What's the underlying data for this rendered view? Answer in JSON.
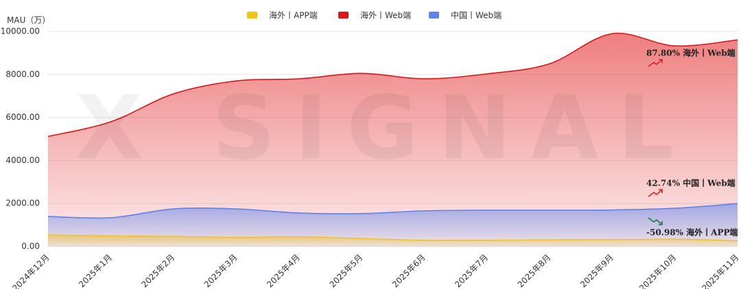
{
  "chart_data": {
    "type": "area",
    "y_label": "MAU（万）",
    "watermark": "X SIGNAL",
    "categories": [
      "2024年12月",
      "2025年1月",
      "2025年2月",
      "2025年3月",
      "2025年4月",
      "2025年5月",
      "2025年6月",
      "2025年7月",
      "2025年8月",
      "2025年9月",
      "2025年10月",
      "2025年11月"
    ],
    "series": [
      {
        "name": "海外丨APP端",
        "color": "#f2c318",
        "values": [
          540,
          490,
          470,
          420,
          450,
          370,
          290,
          290,
          310,
          320,
          340,
          265
        ]
      },
      {
        "name": "海外丨Web端",
        "color": "#e01616",
        "values": [
          5120,
          5800,
          7100,
          7700,
          7800,
          8050,
          7800,
          8030,
          8500,
          9900,
          9330,
          9610
        ]
      },
      {
        "name": "中国丨Web端",
        "color": "#5b82ee",
        "values": [
          1400,
          1340,
          1750,
          1750,
          1560,
          1530,
          1660,
          1690,
          1690,
          1700,
          1780,
          2000
        ]
      }
    ],
    "ylim": [
      0,
      10000
    ],
    "yticks": [
      {
        "value": 0,
        "label": "0.00"
      },
      {
        "value": 2000,
        "label": "2000.00"
      },
      {
        "value": 4000,
        "label": "4000.00"
      },
      {
        "value": 6000,
        "label": "6000.00"
      },
      {
        "value": 8000,
        "label": "8000.00"
      },
      {
        "value": 10000,
        "label": "10000.00"
      }
    ],
    "grid": true,
    "legend": "top",
    "annotations": [
      "87.80%  海外丨Web端",
      "42.74%  中国丨Web端",
      "-50.98%  海外丨APP端"
    ]
  }
}
